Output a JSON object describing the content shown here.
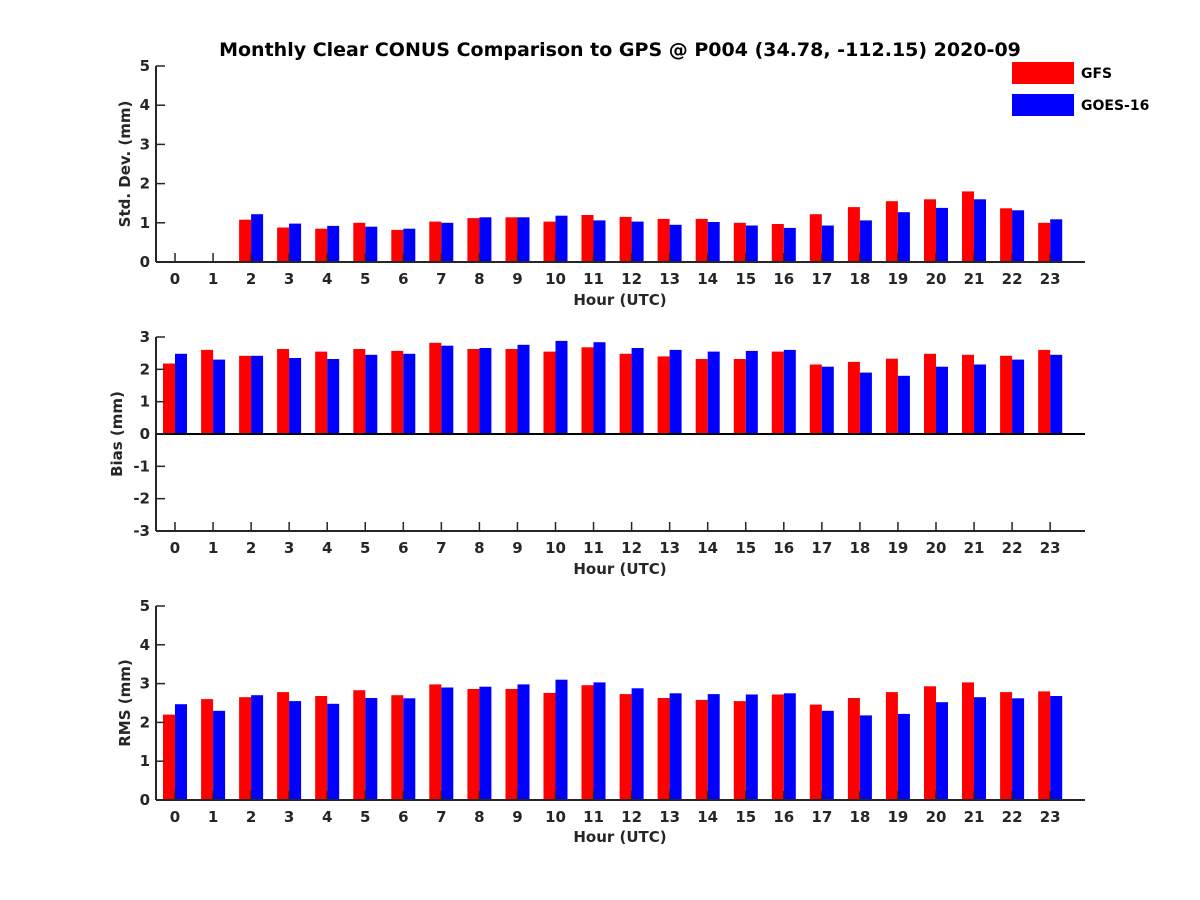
{
  "title": "Monthly Clear CONUS Comparison to GPS @ P004 (34.78, -112.15) 2020-09",
  "colors": {
    "GFS": "#ff0000",
    "GOES-16": "#0000ff",
    "axis": "#262626"
  },
  "legend": [
    {
      "name": "GFS",
      "color": "#ff0000"
    },
    {
      "name": "GOES-16",
      "color": "#0000ff"
    }
  ],
  "chart_data": [
    {
      "type": "bar",
      "title": "Monthly Clear CONUS Comparison to GPS @ P004 (34.78, -112.15) 2020-09",
      "xlabel": "Hour (UTC)",
      "ylabel": "Std. Dev. (mm)",
      "ylim": [
        0,
        5
      ],
      "yticks": [
        0,
        1,
        2,
        3,
        4,
        5
      ],
      "categories": [
        "0",
        "1",
        "2",
        "3",
        "4",
        "5",
        "6",
        "7",
        "8",
        "9",
        "10",
        "11",
        "12",
        "13",
        "14",
        "15",
        "16",
        "17",
        "18",
        "19",
        "20",
        "21",
        "22",
        "23"
      ],
      "grid": false,
      "legend_position": "top-right",
      "series": [
        {
          "name": "GFS",
          "values": [
            0,
            0,
            1.08,
            0.88,
            0.85,
            1.0,
            0.82,
            1.03,
            1.12,
            1.14,
            1.03,
            1.2,
            1.15,
            1.1,
            1.1,
            1.0,
            0.97,
            1.22,
            1.4,
            1.55,
            1.6,
            1.8,
            1.37,
            1.0
          ]
        },
        {
          "name": "GOES-16",
          "values": [
            0,
            0,
            1.22,
            0.98,
            0.92,
            0.9,
            0.85,
            1.0,
            1.14,
            1.14,
            1.18,
            1.06,
            1.03,
            0.95,
            1.02,
            0.93,
            0.87,
            0.93,
            1.06,
            1.27,
            1.38,
            1.6,
            1.32,
            1.09
          ]
        }
      ]
    },
    {
      "type": "bar",
      "title": "",
      "xlabel": "Hour (UTC)",
      "ylabel": "Bias (mm)",
      "ylim": [
        -3,
        3
      ],
      "yticks": [
        -3,
        -2,
        -1,
        0,
        1,
        2,
        3
      ],
      "categories": [
        "0",
        "1",
        "2",
        "3",
        "4",
        "5",
        "6",
        "7",
        "8",
        "9",
        "10",
        "11",
        "12",
        "13",
        "14",
        "15",
        "16",
        "17",
        "18",
        "19",
        "20",
        "21",
        "22",
        "23"
      ],
      "grid": false,
      "series": [
        {
          "name": "GFS",
          "values": [
            2.18,
            2.6,
            2.42,
            2.63,
            2.55,
            2.63,
            2.57,
            2.82,
            2.63,
            2.63,
            2.55,
            2.68,
            2.48,
            2.4,
            2.32,
            2.32,
            2.55,
            2.15,
            2.23,
            2.33,
            2.48,
            2.45,
            2.42,
            2.6
          ]
        },
        {
          "name": "GOES-16",
          "values": [
            2.48,
            2.3,
            2.42,
            2.35,
            2.32,
            2.45,
            2.48,
            2.73,
            2.66,
            2.76,
            2.88,
            2.84,
            2.66,
            2.6,
            2.55,
            2.57,
            2.6,
            2.08,
            1.9,
            1.8,
            2.08,
            2.15,
            2.3,
            2.45
          ]
        }
      ]
    },
    {
      "type": "bar",
      "title": "",
      "xlabel": "Hour (UTC)",
      "ylabel": "RMS (mm)",
      "ylim": [
        0,
        5
      ],
      "yticks": [
        0,
        1,
        2,
        3,
        4,
        5
      ],
      "categories": [
        "0",
        "1",
        "2",
        "3",
        "4",
        "5",
        "6",
        "7",
        "8",
        "9",
        "10",
        "11",
        "12",
        "13",
        "14",
        "15",
        "16",
        "17",
        "18",
        "19",
        "20",
        "21",
        "22",
        "23"
      ],
      "grid": false,
      "series": [
        {
          "name": "GFS",
          "values": [
            2.2,
            2.6,
            2.65,
            2.78,
            2.68,
            2.83,
            2.7,
            2.98,
            2.86,
            2.86,
            2.76,
            2.96,
            2.73,
            2.63,
            2.58,
            2.55,
            2.72,
            2.46,
            2.63,
            2.78,
            2.93,
            3.03,
            2.78,
            2.8
          ]
        },
        {
          "name": "GOES-16",
          "values": [
            2.47,
            2.3,
            2.7,
            2.55,
            2.48,
            2.63,
            2.62,
            2.9,
            2.92,
            2.98,
            3.1,
            3.03,
            2.88,
            2.75,
            2.73,
            2.72,
            2.75,
            2.3,
            2.18,
            2.22,
            2.52,
            2.65,
            2.62,
            2.68
          ]
        }
      ]
    }
  ]
}
